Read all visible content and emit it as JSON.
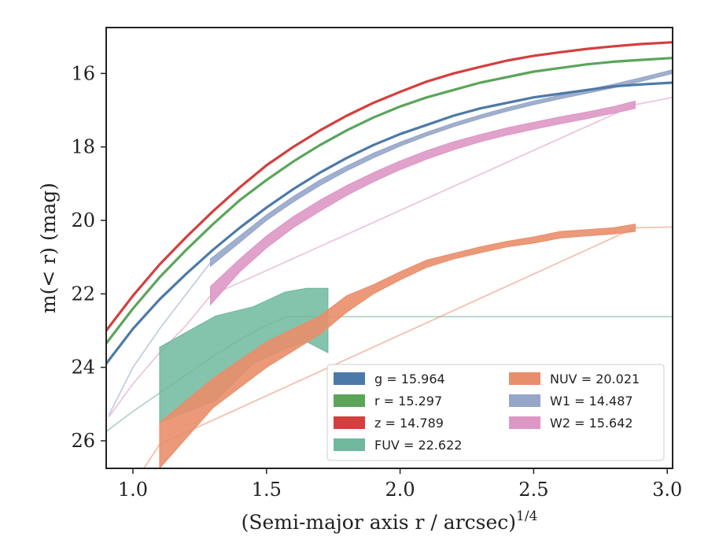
{
  "chart_data": {
    "type": "line",
    "xlabel": "(Semi-major axis r / arcsec)",
    "xlabel_superscript": "1/4",
    "ylabel": "m(< r) (mag)",
    "xlim": [
      0.9,
      3.02
    ],
    "ylim": [
      26.75,
      14.75
    ],
    "y_inverted": true,
    "xticks": [
      "1.0",
      "1.5",
      "2.0",
      "2.5",
      "3.0"
    ],
    "yticks": [
      "16",
      "18",
      "20",
      "22",
      "24",
      "26"
    ],
    "grid": false,
    "legend_position": "lower-right",
    "series": [
      {
        "key": "g",
        "legend": "g = 15.964",
        "color": "#4c7aa8",
        "kind": "line",
        "x": [
          0.9,
          1.0,
          1.1,
          1.2,
          1.3,
          1.4,
          1.5,
          1.6,
          1.7,
          1.8,
          1.9,
          2.0,
          2.1,
          2.2,
          2.3,
          2.4,
          2.5,
          2.6,
          2.7,
          2.8,
          2.9,
          3.02
        ],
        "y": [
          23.9,
          22.95,
          22.15,
          21.45,
          20.8,
          20.2,
          19.65,
          19.15,
          18.7,
          18.3,
          17.95,
          17.65,
          17.4,
          17.15,
          16.95,
          16.8,
          16.65,
          16.55,
          16.45,
          16.35,
          16.3,
          16.25
        ]
      },
      {
        "key": "r",
        "legend": "r = 15.297",
        "color": "#5ba55b",
        "kind": "line",
        "x": [
          0.9,
          1.0,
          1.1,
          1.2,
          1.3,
          1.4,
          1.5,
          1.6,
          1.7,
          1.8,
          1.9,
          2.0,
          2.1,
          2.2,
          2.3,
          2.4,
          2.5,
          2.6,
          2.7,
          2.8,
          2.9,
          3.02
        ],
        "y": [
          23.35,
          22.4,
          21.55,
          20.8,
          20.1,
          19.45,
          18.9,
          18.4,
          17.95,
          17.55,
          17.2,
          16.9,
          16.65,
          16.45,
          16.25,
          16.1,
          15.95,
          15.85,
          15.75,
          15.68,
          15.63,
          15.58
        ]
      },
      {
        "key": "z",
        "legend": "z = 14.789",
        "color": "#d43f3f",
        "kind": "line",
        "x": [
          0.9,
          1.0,
          1.1,
          1.2,
          1.3,
          1.4,
          1.5,
          1.6,
          1.7,
          1.8,
          1.9,
          2.0,
          2.1,
          2.2,
          2.3,
          2.4,
          2.5,
          2.6,
          2.7,
          2.8,
          2.9,
          3.02
        ],
        "y": [
          23.0,
          22.05,
          21.2,
          20.45,
          19.75,
          19.1,
          18.5,
          18.0,
          17.55,
          17.15,
          16.8,
          16.5,
          16.22,
          16.0,
          15.82,
          15.65,
          15.52,
          15.42,
          15.33,
          15.26,
          15.2,
          15.15
        ]
      },
      {
        "key": "FUV",
        "legend": "FUV = 22.622",
        "color": "#6fb89e",
        "kind": "band",
        "x": [
          1.1,
          1.31,
          1.45,
          1.57,
          1.65,
          1.73
        ],
        "y_low": [
          25.5,
          24.9,
          23.9,
          23.5,
          23.3,
          23.6
        ],
        "y_high": [
          23.45,
          22.6,
          22.35,
          21.95,
          21.85,
          21.85
        ],
        "extension": {
          "x": [
            0.9,
            1.0,
            1.1,
            1.2,
            1.3,
            1.4,
            1.5,
            1.58,
            1.7,
            2.0,
            2.5,
            3.02
          ],
          "y": [
            25.75,
            25.2,
            24.7,
            24.2,
            23.7,
            23.25,
            22.85,
            22.62,
            22.62,
            22.62,
            22.62,
            22.62
          ]
        }
      },
      {
        "key": "NUV",
        "legend": "NUV = 20.021",
        "color": "#e98e6a",
        "kind": "band",
        "x": [
          1.1,
          1.3,
          1.5,
          1.7,
          1.8,
          1.9,
          2.0,
          2.1,
          2.2,
          2.3,
          2.4,
          2.5,
          2.6,
          2.7,
          2.8,
          2.88
        ],
        "y_low": [
          26.75,
          25.1,
          24.0,
          23.1,
          22.5,
          22.0,
          21.62,
          21.28,
          21.05,
          20.88,
          20.72,
          20.62,
          20.48,
          20.42,
          20.37,
          20.3
        ],
        "y_high": [
          25.5,
          24.3,
          23.3,
          22.6,
          22.05,
          21.75,
          21.4,
          21.08,
          20.9,
          20.72,
          20.57,
          20.45,
          20.3,
          20.25,
          20.2,
          20.1
        ],
        "extension": {
          "x": [
            0.9,
            1.0,
            1.1,
            2.88,
            3.02
          ],
          "y": [
            27.5,
            27.2,
            26.1,
            20.2,
            20.18
          ]
        }
      },
      {
        "key": "W1",
        "legend": "W1 = 14.487",
        "color": "#96a6c8",
        "kind": "band",
        "x": [
          1.29,
          1.4,
          1.5,
          1.6,
          1.7,
          1.8,
          1.9,
          2.0,
          2.1,
          2.2,
          2.3,
          2.4,
          2.5,
          2.6,
          2.7,
          2.8,
          2.9,
          3.02
        ],
        "y_low": [
          21.25,
          20.6,
          20.0,
          19.5,
          19.05,
          18.65,
          18.3,
          17.98,
          17.7,
          17.45,
          17.23,
          17.03,
          16.85,
          16.69,
          16.54,
          16.39,
          16.22,
          16.0
        ],
        "y_high": [
          21.05,
          20.42,
          19.85,
          19.35,
          18.9,
          18.52,
          18.17,
          17.87,
          17.6,
          17.35,
          17.13,
          16.93,
          16.75,
          16.59,
          16.44,
          16.29,
          16.12,
          15.9
        ],
        "extension": {
          "x": [
            0.91,
            1.0,
            1.1,
            1.2,
            1.29
          ],
          "y": [
            25.3,
            24.0,
            22.95,
            22.0,
            21.15
          ]
        }
      },
      {
        "key": "W2",
        "legend": "W2 = 15.642",
        "color": "#dd97c5",
        "kind": "band",
        "x": [
          1.29,
          1.4,
          1.5,
          1.6,
          1.7,
          1.8,
          1.9,
          2.0,
          2.1,
          2.2,
          2.3,
          2.4,
          2.5,
          2.6,
          2.7,
          2.8,
          2.88
        ],
        "y_low": [
          22.3,
          21.4,
          20.75,
          20.2,
          19.75,
          19.32,
          18.95,
          18.62,
          18.33,
          18.08,
          17.86,
          17.68,
          17.52,
          17.37,
          17.23,
          17.08,
          16.95
        ],
        "y_high": [
          21.8,
          21.05,
          20.42,
          19.9,
          19.45,
          19.05,
          18.7,
          18.38,
          18.1,
          17.86,
          17.66,
          17.48,
          17.33,
          17.18,
          17.05,
          16.9,
          16.75
        ],
        "extension": {
          "x": [
            0.91,
            1.0,
            1.1,
            1.2,
            1.29,
            2.88,
            3.02
          ],
          "y": [
            25.35,
            24.45,
            23.6,
            22.85,
            22.05,
            16.85,
            16.65
          ]
        }
      }
    ],
    "legend_columns": [
      [
        "g",
        "r",
        "z",
        "FUV"
      ],
      [
        "NUV",
        "W1",
        "W2"
      ]
    ]
  }
}
